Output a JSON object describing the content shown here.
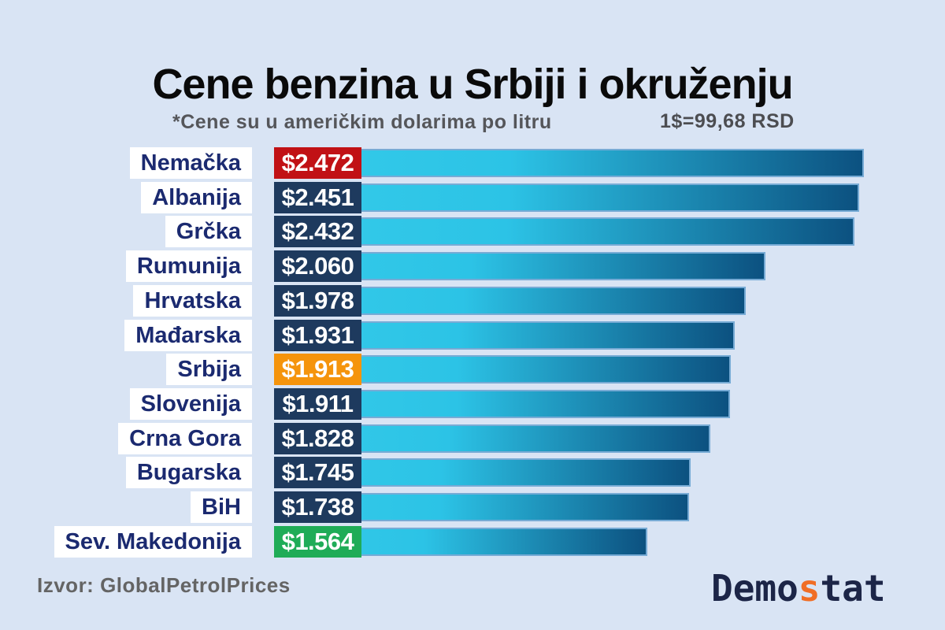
{
  "logo": {
    "prefix": "Demo",
    "accent": "s",
    "suffix": "tat"
  },
  "colors": {
    "background": "#d9e4f4",
    "bar_gradient_start": "#35cbe9",
    "bar_gradient_end": "#0c5180",
    "bar_border": "#77abd5",
    "badge_navy": "#1e3a5e",
    "badge_red": "#c11115",
    "badge_orange": "#f5940c",
    "badge_green": "#1fac57",
    "label_text": "#1b2a70",
    "logo_navy": "#1c2547",
    "logo_accent": "#f06e26"
  },
  "chart_data": {
    "type": "bar",
    "orientation": "horizontal",
    "title": "Cene benzina u Srbiji i okruženju",
    "note": "*Cene su u američkim dolarima po litru",
    "exchange_rate": "1$=99,68 RSD",
    "unit": "USD per liter",
    "categories": [
      "Nemačka",
      "Albanija",
      "Grčka",
      "Rumunija",
      "Hrvatska",
      "Mađarska",
      "Srbija",
      "Slovenija",
      "Crna Gora",
      "Bugarska",
      "BiH",
      "Sev. Makedonija"
    ],
    "values": [
      2.472,
      2.451,
      2.432,
      2.06,
      1.978,
      1.931,
      1.913,
      1.911,
      1.828,
      1.745,
      1.738,
      1.564
    ],
    "value_labels": [
      "$2.472",
      "$2.451",
      "$2.432",
      "$2.060",
      "$1.978",
      "$1.931",
      "$1.913",
      "$1.911",
      "$1.828",
      "$1.745",
      "$1.738",
      "$1.564"
    ],
    "badge_colors": [
      "red",
      "navy",
      "navy",
      "navy",
      "navy",
      "navy",
      "orange",
      "navy",
      "navy",
      "navy",
      "navy",
      "green"
    ],
    "xlim": [
      0,
      2.472
    ],
    "grid": false,
    "legend": false,
    "source": "Izvor: GlobalPetrolPrices"
  }
}
